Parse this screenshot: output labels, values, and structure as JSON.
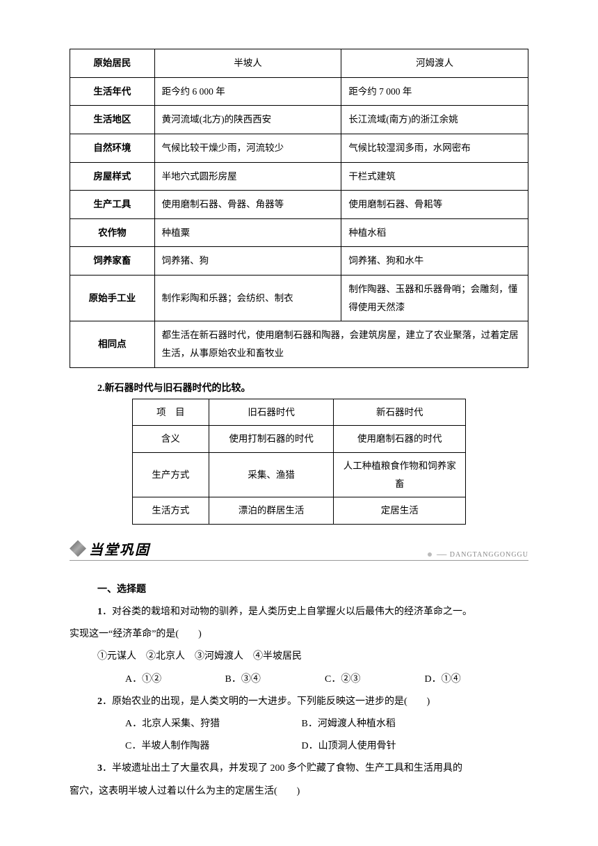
{
  "table1": {
    "columns": [
      "原始居民",
      "半坡人",
      "河姆渡人"
    ],
    "rows": [
      {
        "label": "生活年代",
        "c1": "距今约 6 000 年",
        "c2": "距今约 7 000 年"
      },
      {
        "label": "生活地区",
        "c1": "黄河流域(北方)的陕西西安",
        "c2": "长江流域(南方)的浙江余姚"
      },
      {
        "label": "自然环境",
        "c1": "气候比较干燥少雨，河流较少",
        "c2": "气候比较湿润多雨，水网密布"
      },
      {
        "label": "房屋样式",
        "c1": "半地穴式圆形房屋",
        "c2": "干栏式建筑"
      },
      {
        "label": "生产工具",
        "c1": "使用磨制石器、骨器、角器等",
        "c2": "使用磨制石器、骨耜等"
      },
      {
        "label": "农作物",
        "c1": "种植粟",
        "c2": "种植水稻"
      },
      {
        "label": "饲养家畜",
        "c1": "饲养猪、狗",
        "c2": "饲养猪、狗和水牛"
      },
      {
        "label": "原始手工业",
        "c1": "制作彩陶和乐器；会纺织、制衣",
        "c2": "制作陶器、玉器和乐器骨哨；会雕刻，懂得使用天然漆"
      }
    ],
    "same_label": "相同点",
    "same_text": "都生活在新石器时代，使用磨制石器和陶器，会建筑房屋，建立了农业聚落，过着定居生活，从事原始农业和畜牧业"
  },
  "heading2": "2.新石器时代与旧石器时代的比较。",
  "table2": {
    "columns": [
      "项　目",
      "旧石器时代",
      "新石器时代"
    ],
    "rows": [
      {
        "label": "含义",
        "c1": "使用打制石器的时代",
        "c2": "使用磨制石器的时代"
      },
      {
        "label": "生产方式",
        "c1": "采集、渔猎",
        "c2": "人工种植粮食作物和饲养家畜"
      },
      {
        "label": "生活方式",
        "c1": "漂泊的群居生活",
        "c2": "定居生活"
      }
    ]
  },
  "banner": {
    "title": "当堂巩固",
    "pinyin": "DANGTANGGONGGU"
  },
  "section_title": "一、选择题",
  "q1": {
    "num": "1",
    "stem_a": "．对谷类的栽培和对动物的驯养，是人类历史上自掌握火以后最伟大的经济革命之一。",
    "stem_b": "实现这一“经济革命”的是(　　)",
    "choices_line": "①元谋人　②北京人　③河姆渡人　④半坡居民",
    "A": "①②",
    "B": "③④",
    "C": "②③",
    "D": "①④"
  },
  "q2": {
    "num": "2",
    "stem": "．原始农业的出现，是人类文明的一大进步。下列能反映这一进步的是(　　)",
    "A": "北京人采集、狩猎",
    "B": "河姆渡人种植水稻",
    "C": "半坡人制作陶器",
    "D": "山顶洞人使用骨针"
  },
  "q3": {
    "num": "3",
    "stem_a": "．半坡遗址出土了大量农具，并发现了 200 多个贮藏了食物、生产工具和生活用具的",
    "stem_b": "窖穴，这表明半坡人过着以什么为主的定居生活(　　)"
  }
}
